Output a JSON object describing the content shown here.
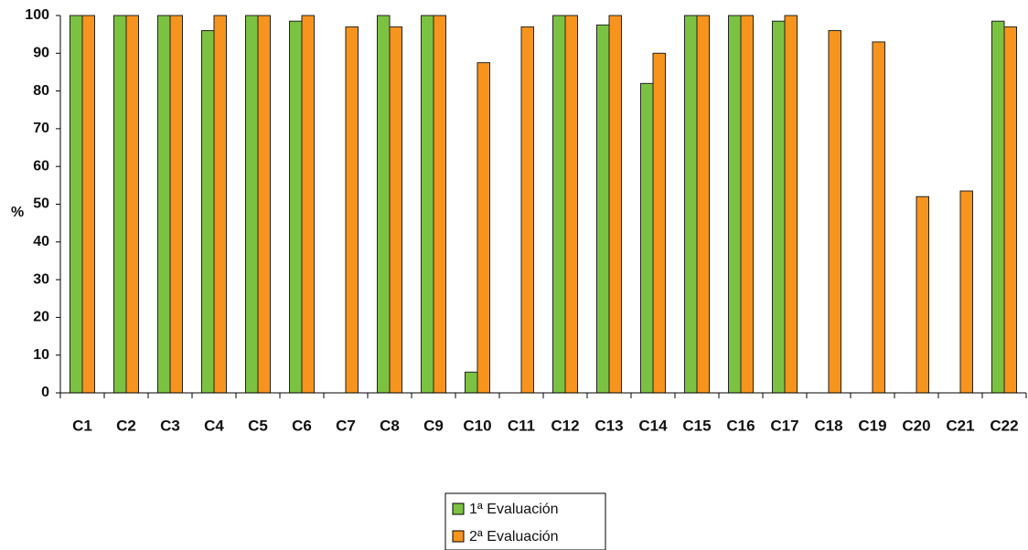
{
  "chart_data": {
    "type": "bar",
    "title": "",
    "xlabel": "",
    "ylabel": "%",
    "ylim": [
      0,
      100
    ],
    "yticks": [
      0,
      10,
      20,
      30,
      40,
      50,
      60,
      70,
      80,
      90,
      100
    ],
    "grid": false,
    "legend_position": "bottom-center",
    "categories": [
      "C1",
      "C2",
      "C3",
      "C4",
      "C5",
      "C6",
      "C7",
      "C8",
      "C9",
      "C10",
      "C11",
      "C12",
      "C13",
      "C14",
      "C15",
      "C16",
      "C17",
      "C18",
      "C19",
      "C20",
      "C21",
      "C22"
    ],
    "series": [
      {
        "name": "1ª Evaluación",
        "color": "#7CC242",
        "values": [
          100,
          100,
          100,
          96,
          100,
          98.5,
          0,
          100,
          100,
          5.5,
          0,
          100,
          97.5,
          82,
          100,
          100,
          98.5,
          0,
          0,
          0,
          0,
          98.5
        ]
      },
      {
        "name": "2ª Evaluación",
        "color": "#F7941D",
        "values": [
          100,
          100,
          100,
          100,
          100,
          100,
          97,
          97,
          100,
          87.5,
          97,
          100,
          100,
          90,
          100,
          100,
          100,
          96,
          93,
          52,
          53.5,
          97
        ]
      }
    ]
  }
}
